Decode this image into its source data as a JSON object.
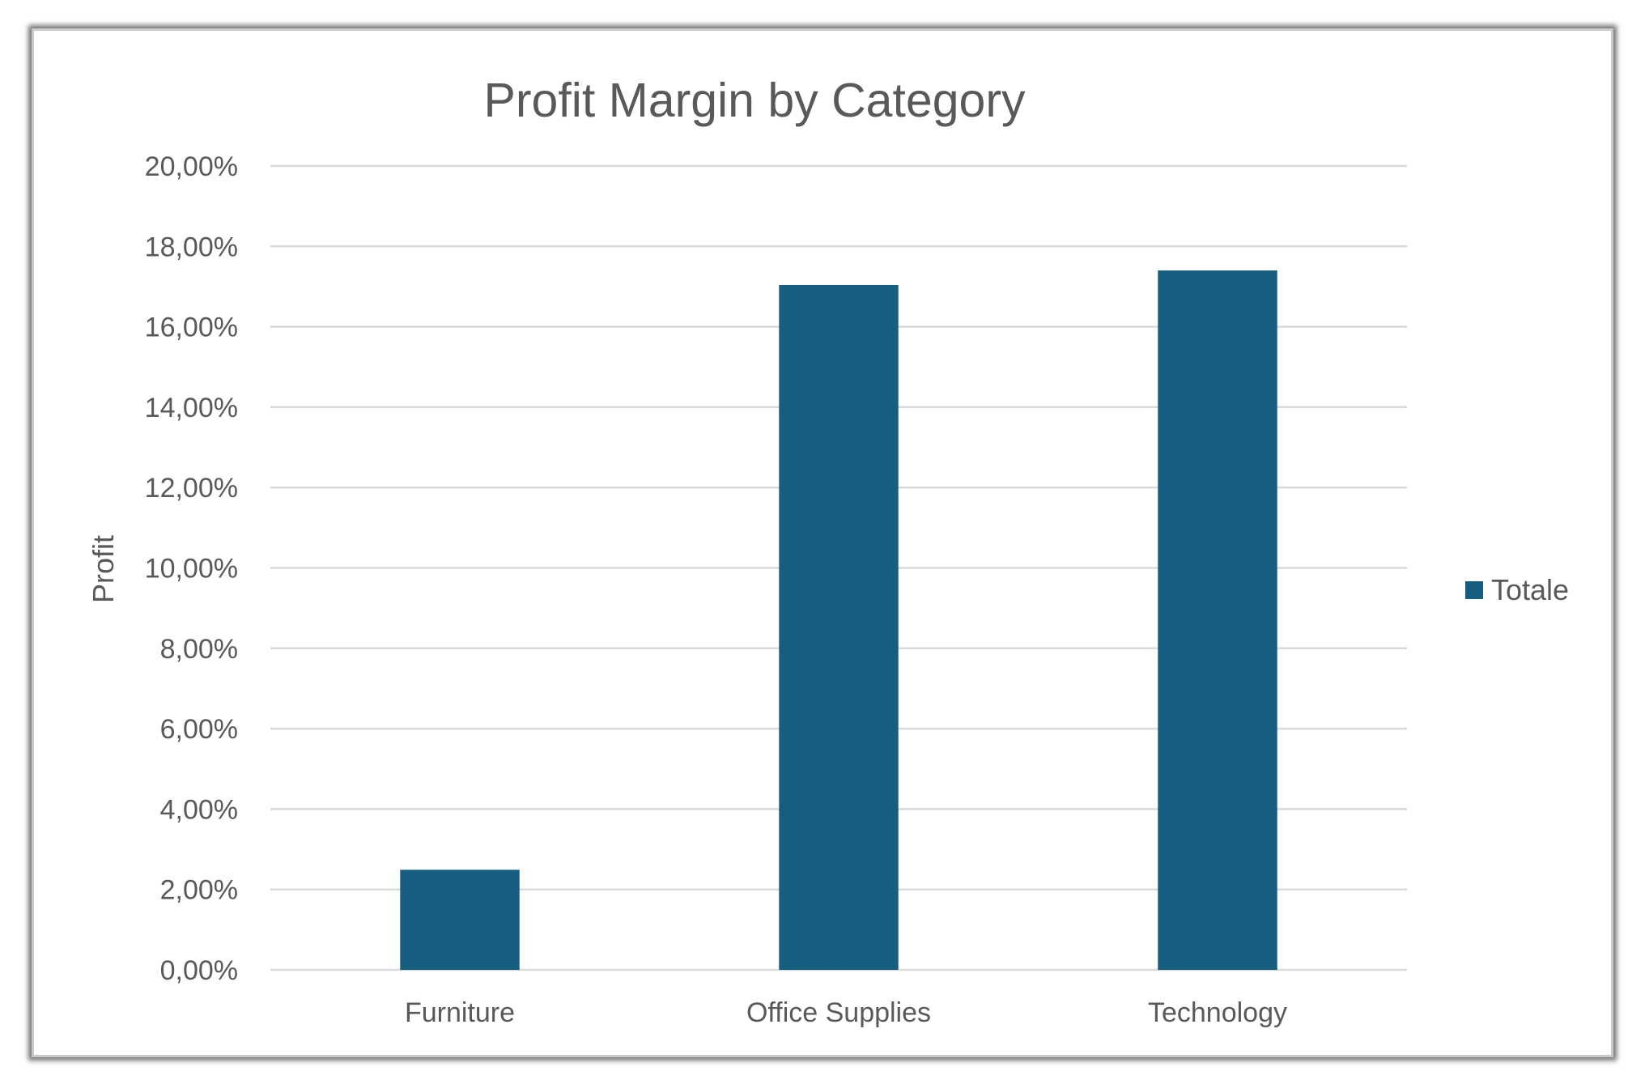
{
  "chart_data": {
    "type": "bar",
    "title": "Profit Margin by Category",
    "xlabel": "",
    "ylabel": "Profit",
    "categories": [
      "Furniture",
      "Office Supplies",
      "Technology"
    ],
    "series": [
      {
        "name": "Totale",
        "values": [
          2.49,
          17.04,
          17.4
        ],
        "color": "#165E80"
      }
    ],
    "y_ticks": [
      "0,00%",
      "2,00%",
      "4,00%",
      "6,00%",
      "8,00%",
      "10,00%",
      "12,00%",
      "14,00%",
      "16,00%",
      "18,00%",
      "20,00%"
    ],
    "ylim": [
      0,
      20
    ],
    "grid": true,
    "legend_position": "right",
    "colors": {
      "bar": "#165E80",
      "grid": "#d9d9d9",
      "text": "#595959",
      "border": "#c9c9c9"
    }
  }
}
